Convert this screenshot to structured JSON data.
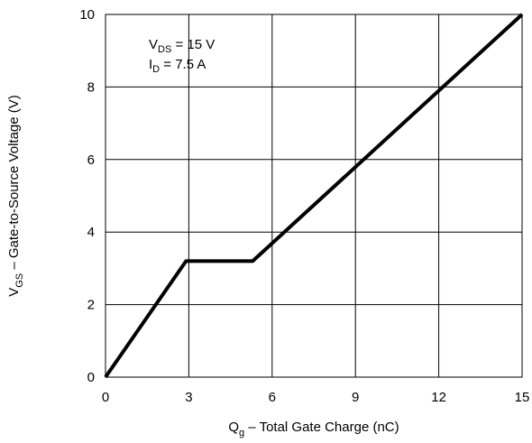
{
  "chart_data": {
    "type": "line",
    "xlabel": {
      "main": "Q",
      "sub": "g",
      "rest": " –  Total Gate Charge (nC)"
    },
    "ylabel": {
      "main": "V",
      "sub": "GS",
      "rest": "  –  Gate-to-Source Voltage (V)"
    },
    "xlim": [
      0,
      15
    ],
    "ylim": [
      0,
      10
    ],
    "xticks": [
      0,
      3,
      6,
      9,
      12,
      15
    ],
    "yticks": [
      0,
      2,
      4,
      6,
      8,
      10
    ],
    "x_tick_labels": [
      "0",
      "3",
      "6",
      "9",
      "12",
      "15"
    ],
    "y_tick_labels": [
      "0",
      "2",
      "4",
      "6",
      "8",
      "10"
    ],
    "grid": true,
    "series": [
      {
        "x": [
          0,
          2.9,
          5.3,
          15
        ],
        "y": [
          0,
          3.2,
          3.2,
          10
        ],
        "color": "#000000"
      }
    ],
    "annotations": [
      {
        "main": "V",
        "sub": "DS",
        "rest": " = 15 V"
      },
      {
        "main": "I",
        "sub": "D",
        "rest": " = 7.5 A"
      }
    ]
  }
}
